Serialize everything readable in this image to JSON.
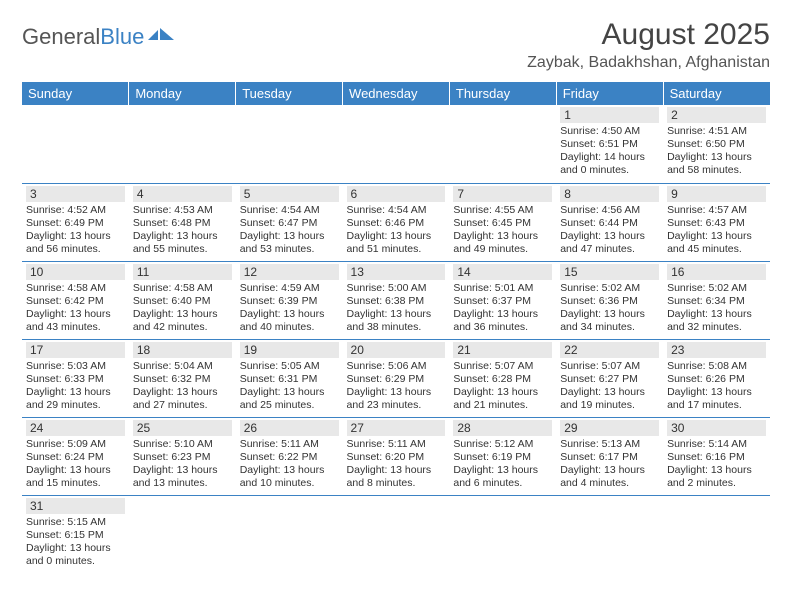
{
  "brand": {
    "part1": "General",
    "part2": "Blue"
  },
  "title": {
    "month": "August 2025",
    "location": "Zaybak, Badakhshan, Afghanistan"
  },
  "colors": {
    "header_bg": "#3b82c4",
    "header_text": "#ffffff",
    "row_border": "#3b82c4",
    "daynum_bg": "#e8e8e8",
    "text": "#333333",
    "brand_gray": "#555555",
    "brand_blue": "#3b82c4",
    "background": "#ffffff"
  },
  "typography": {
    "month_fontsize": 30,
    "location_fontsize": 16,
    "dayheader_fontsize": 13,
    "daynum_fontsize": 12,
    "detail_fontsize": 10.5
  },
  "day_headers": [
    "Sunday",
    "Monday",
    "Tuesday",
    "Wednesday",
    "Thursday",
    "Friday",
    "Saturday"
  ],
  "weeks": [
    [
      {
        "empty": true
      },
      {
        "empty": true
      },
      {
        "empty": true
      },
      {
        "empty": true
      },
      {
        "empty": true
      },
      {
        "day": "1",
        "sunrise": "Sunrise: 4:50 AM",
        "sunset": "Sunset: 6:51 PM",
        "daylight": "Daylight: 14 hours and 0 minutes."
      },
      {
        "day": "2",
        "sunrise": "Sunrise: 4:51 AM",
        "sunset": "Sunset: 6:50 PM",
        "daylight": "Daylight: 13 hours and 58 minutes."
      }
    ],
    [
      {
        "day": "3",
        "sunrise": "Sunrise: 4:52 AM",
        "sunset": "Sunset: 6:49 PM",
        "daylight": "Daylight: 13 hours and 56 minutes."
      },
      {
        "day": "4",
        "sunrise": "Sunrise: 4:53 AM",
        "sunset": "Sunset: 6:48 PM",
        "daylight": "Daylight: 13 hours and 55 minutes."
      },
      {
        "day": "5",
        "sunrise": "Sunrise: 4:54 AM",
        "sunset": "Sunset: 6:47 PM",
        "daylight": "Daylight: 13 hours and 53 minutes."
      },
      {
        "day": "6",
        "sunrise": "Sunrise: 4:54 AM",
        "sunset": "Sunset: 6:46 PM",
        "daylight": "Daylight: 13 hours and 51 minutes."
      },
      {
        "day": "7",
        "sunrise": "Sunrise: 4:55 AM",
        "sunset": "Sunset: 6:45 PM",
        "daylight": "Daylight: 13 hours and 49 minutes."
      },
      {
        "day": "8",
        "sunrise": "Sunrise: 4:56 AM",
        "sunset": "Sunset: 6:44 PM",
        "daylight": "Daylight: 13 hours and 47 minutes."
      },
      {
        "day": "9",
        "sunrise": "Sunrise: 4:57 AM",
        "sunset": "Sunset: 6:43 PM",
        "daylight": "Daylight: 13 hours and 45 minutes."
      }
    ],
    [
      {
        "day": "10",
        "sunrise": "Sunrise: 4:58 AM",
        "sunset": "Sunset: 6:42 PM",
        "daylight": "Daylight: 13 hours and 43 minutes."
      },
      {
        "day": "11",
        "sunrise": "Sunrise: 4:58 AM",
        "sunset": "Sunset: 6:40 PM",
        "daylight": "Daylight: 13 hours and 42 minutes."
      },
      {
        "day": "12",
        "sunrise": "Sunrise: 4:59 AM",
        "sunset": "Sunset: 6:39 PM",
        "daylight": "Daylight: 13 hours and 40 minutes."
      },
      {
        "day": "13",
        "sunrise": "Sunrise: 5:00 AM",
        "sunset": "Sunset: 6:38 PM",
        "daylight": "Daylight: 13 hours and 38 minutes."
      },
      {
        "day": "14",
        "sunrise": "Sunrise: 5:01 AM",
        "sunset": "Sunset: 6:37 PM",
        "daylight": "Daylight: 13 hours and 36 minutes."
      },
      {
        "day": "15",
        "sunrise": "Sunrise: 5:02 AM",
        "sunset": "Sunset: 6:36 PM",
        "daylight": "Daylight: 13 hours and 34 minutes."
      },
      {
        "day": "16",
        "sunrise": "Sunrise: 5:02 AM",
        "sunset": "Sunset: 6:34 PM",
        "daylight": "Daylight: 13 hours and 32 minutes."
      }
    ],
    [
      {
        "day": "17",
        "sunrise": "Sunrise: 5:03 AM",
        "sunset": "Sunset: 6:33 PM",
        "daylight": "Daylight: 13 hours and 29 minutes."
      },
      {
        "day": "18",
        "sunrise": "Sunrise: 5:04 AM",
        "sunset": "Sunset: 6:32 PM",
        "daylight": "Daylight: 13 hours and 27 minutes."
      },
      {
        "day": "19",
        "sunrise": "Sunrise: 5:05 AM",
        "sunset": "Sunset: 6:31 PM",
        "daylight": "Daylight: 13 hours and 25 minutes."
      },
      {
        "day": "20",
        "sunrise": "Sunrise: 5:06 AM",
        "sunset": "Sunset: 6:29 PM",
        "daylight": "Daylight: 13 hours and 23 minutes."
      },
      {
        "day": "21",
        "sunrise": "Sunrise: 5:07 AM",
        "sunset": "Sunset: 6:28 PM",
        "daylight": "Daylight: 13 hours and 21 minutes."
      },
      {
        "day": "22",
        "sunrise": "Sunrise: 5:07 AM",
        "sunset": "Sunset: 6:27 PM",
        "daylight": "Daylight: 13 hours and 19 minutes."
      },
      {
        "day": "23",
        "sunrise": "Sunrise: 5:08 AM",
        "sunset": "Sunset: 6:26 PM",
        "daylight": "Daylight: 13 hours and 17 minutes."
      }
    ],
    [
      {
        "day": "24",
        "sunrise": "Sunrise: 5:09 AM",
        "sunset": "Sunset: 6:24 PM",
        "daylight": "Daylight: 13 hours and 15 minutes."
      },
      {
        "day": "25",
        "sunrise": "Sunrise: 5:10 AM",
        "sunset": "Sunset: 6:23 PM",
        "daylight": "Daylight: 13 hours and 13 minutes."
      },
      {
        "day": "26",
        "sunrise": "Sunrise: 5:11 AM",
        "sunset": "Sunset: 6:22 PM",
        "daylight": "Daylight: 13 hours and 10 minutes."
      },
      {
        "day": "27",
        "sunrise": "Sunrise: 5:11 AM",
        "sunset": "Sunset: 6:20 PM",
        "daylight": "Daylight: 13 hours and 8 minutes."
      },
      {
        "day": "28",
        "sunrise": "Sunrise: 5:12 AM",
        "sunset": "Sunset: 6:19 PM",
        "daylight": "Daylight: 13 hours and 6 minutes."
      },
      {
        "day": "29",
        "sunrise": "Sunrise: 5:13 AM",
        "sunset": "Sunset: 6:17 PM",
        "daylight": "Daylight: 13 hours and 4 minutes."
      },
      {
        "day": "30",
        "sunrise": "Sunrise: 5:14 AM",
        "sunset": "Sunset: 6:16 PM",
        "daylight": "Daylight: 13 hours and 2 minutes."
      }
    ],
    [
      {
        "day": "31",
        "sunrise": "Sunrise: 5:15 AM",
        "sunset": "Sunset: 6:15 PM",
        "daylight": "Daylight: 13 hours and 0 minutes."
      },
      {
        "empty": true
      },
      {
        "empty": true
      },
      {
        "empty": true
      },
      {
        "empty": true
      },
      {
        "empty": true
      },
      {
        "empty": true
      }
    ]
  ]
}
